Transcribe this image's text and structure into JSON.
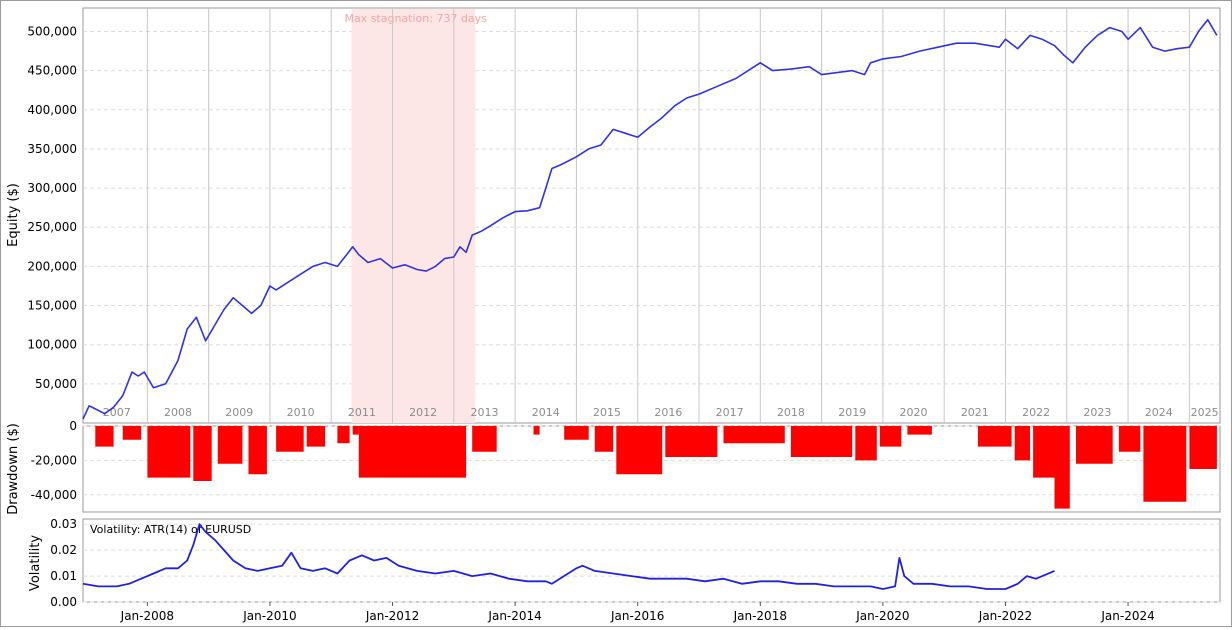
{
  "colors": {
    "equity_line": "#3333dd",
    "drawdown_fill": "#ff0000",
    "volatility_line": "#2222dd",
    "stagnation_band": "#fde6e6",
    "stagnation_text": "#f3a5a5",
    "grid": "#dddddd",
    "year_line": "#c8c8c8",
    "year_label": "#8c8c8c",
    "frame": "#9a9a9a"
  },
  "chart_data": [
    {
      "type": "line",
      "panel": "equity",
      "ylabel": "Equity ($)",
      "ylim": [
        0,
        530000
      ],
      "yticks": [
        "50,000",
        "100,000",
        "150,000",
        "200,000",
        "250,000",
        "300,000",
        "350,000",
        "400,000",
        "450,000",
        "500,000"
      ],
      "ytick_values": [
        50000,
        100000,
        150000,
        200000,
        250000,
        300000,
        350000,
        400000,
        450000,
        500000
      ],
      "grid": true,
      "year_labels": [
        "2007",
        "2008",
        "2009",
        "2010",
        "2011",
        "2012",
        "2013",
        "2014",
        "2015",
        "2016",
        "2017",
        "2018",
        "2019",
        "2020",
        "2021",
        "2022",
        "2023",
        "2024",
        "2025"
      ],
      "annotation": {
        "text": "Max stagnation: 737 days",
        "start": 2011.33,
        "end": 2013.35
      },
      "series": [
        {
          "x": [
            2006.95,
            2007.05,
            2007.15,
            2007.3,
            2007.45,
            2007.6,
            2007.75,
            2007.85,
            2007.95,
            2008.1,
            2008.3,
            2008.5,
            2008.65,
            2008.8,
            2008.95,
            2009.1,
            2009.25,
            2009.4,
            2009.55,
            2009.7,
            2009.85,
            2010.0,
            2010.1,
            2010.3,
            2010.5,
            2010.7,
            2010.9,
            2011.1,
            2011.25,
            2011.35,
            2011.45,
            2011.6,
            2011.8,
            2012.0,
            2012.2,
            2012.4,
            2012.55,
            2012.7,
            2012.85,
            2013.0,
            2013.1,
            2013.2,
            2013.3,
            2013.45,
            2013.6,
            2013.8,
            2014.0,
            2014.2,
            2014.4,
            2014.5,
            2014.6,
            2014.75,
            2015.0,
            2015.2,
            2015.4,
            2015.6,
            2015.8,
            2016.0,
            2016.2,
            2016.4,
            2016.6,
            2016.8,
            2017.0,
            2017.3,
            2017.6,
            2017.9,
            2018.0,
            2018.2,
            2018.5,
            2018.8,
            2019.0,
            2019.3,
            2019.5,
            2019.7,
            2019.8,
            2020.0,
            2020.3,
            2020.6,
            2020.9,
            2021.2,
            2021.5,
            2021.9,
            2022.0,
            2022.2,
            2022.4,
            2022.6,
            2022.8,
            2022.95,
            2023.1,
            2023.3,
            2023.5,
            2023.7,
            2023.9,
            2024.0,
            2024.2,
            2024.4,
            2024.6,
            2024.8,
            2025.0,
            2025.15,
            2025.3,
            2025.45
          ],
          "values": [
            5000,
            22000,
            18000,
            12000,
            20000,
            35000,
            65000,
            60000,
            65000,
            45000,
            50000,
            80000,
            120000,
            135000,
            105000,
            125000,
            145000,
            160000,
            150000,
            140000,
            150000,
            175000,
            170000,
            180000,
            190000,
            200000,
            205000,
            200000,
            215000,
            225000,
            215000,
            205000,
            210000,
            198000,
            202000,
            196000,
            194000,
            200000,
            210000,
            212000,
            225000,
            218000,
            240000,
            245000,
            252000,
            262000,
            270000,
            271000,
            275000,
            300000,
            325000,
            330000,
            340000,
            350000,
            355000,
            375000,
            370000,
            365000,
            378000,
            390000,
            405000,
            415000,
            420000,
            430000,
            440000,
            455000,
            460000,
            450000,
            452000,
            455000,
            445000,
            448000,
            450000,
            445000,
            460000,
            465000,
            468000,
            475000,
            480000,
            485000,
            485000,
            480000,
            490000,
            478000,
            495000,
            490000,
            482000,
            470000,
            460000,
            480000,
            495000,
            505000,
            500000,
            490000,
            505000,
            480000,
            475000,
            478000,
            480000,
            500000,
            515000,
            495000
          ]
        }
      ]
    },
    {
      "type": "bar",
      "panel": "drawdown",
      "ylabel": "Drawdown ($)",
      "ylim": [
        -50000,
        0
      ],
      "yticks": [
        "0",
        "-20,000",
        "-40,000"
      ],
      "ytick_values": [
        0,
        -20000,
        -40000
      ],
      "grid": true,
      "segments": [
        {
          "start": 2007.15,
          "end": 2007.45,
          "depth": -12000
        },
        {
          "start": 2007.6,
          "end": 2007.9,
          "depth": -8000
        },
        {
          "start": 2008.0,
          "end": 2008.7,
          "depth": -30000
        },
        {
          "start": 2008.75,
          "end": 2009.05,
          "depth": -32000
        },
        {
          "start": 2009.15,
          "end": 2009.55,
          "depth": -22000
        },
        {
          "start": 2009.65,
          "end": 2009.95,
          "depth": -28000
        },
        {
          "start": 2010.1,
          "end": 2010.55,
          "depth": -15000
        },
        {
          "start": 2010.6,
          "end": 2010.9,
          "depth": -12000
        },
        {
          "start": 2011.1,
          "end": 2011.3,
          "depth": -10000
        },
        {
          "start": 2011.35,
          "end": 2011.45,
          "depth": -5000
        },
        {
          "start": 2011.45,
          "end": 2013.2,
          "depth": -30000
        },
        {
          "start": 2013.3,
          "end": 2013.7,
          "depth": -15000
        },
        {
          "start": 2014.3,
          "end": 2014.4,
          "depth": -5000
        },
        {
          "start": 2014.8,
          "end": 2015.2,
          "depth": -8000
        },
        {
          "start": 2015.3,
          "end": 2015.6,
          "depth": -15000
        },
        {
          "start": 2015.65,
          "end": 2016.4,
          "depth": -28000
        },
        {
          "start": 2016.45,
          "end": 2017.3,
          "depth": -18000
        },
        {
          "start": 2017.4,
          "end": 2018.4,
          "depth": -10000
        },
        {
          "start": 2018.5,
          "end": 2019.5,
          "depth": -18000
        },
        {
          "start": 2019.55,
          "end": 2019.9,
          "depth": -20000
        },
        {
          "start": 2019.95,
          "end": 2020.3,
          "depth": -12000
        },
        {
          "start": 2020.4,
          "end": 2020.8,
          "depth": -5000
        },
        {
          "start": 2021.55,
          "end": 2022.1,
          "depth": -12000
        },
        {
          "start": 2022.15,
          "end": 2022.4,
          "depth": -20000
        },
        {
          "start": 2022.45,
          "end": 2022.8,
          "depth": -30000
        },
        {
          "start": 2022.8,
          "end": 2023.05,
          "depth": -48000
        },
        {
          "start": 2023.15,
          "end": 2023.75,
          "depth": -22000
        },
        {
          "start": 2023.85,
          "end": 2024.2,
          "depth": -15000
        },
        {
          "start": 2024.25,
          "end": 2024.95,
          "depth": -44000
        },
        {
          "start": 2025.0,
          "end": 2025.45,
          "depth": -25000
        }
      ]
    },
    {
      "type": "line",
      "panel": "volatility",
      "ylabel": "Volatility",
      "ylim": [
        0,
        0.032
      ],
      "yticks": [
        "0.00",
        "0.01",
        "0.02",
        "0.03"
      ],
      "ytick_values": [
        0,
        0.01,
        0.02,
        0.03
      ],
      "grid": true,
      "xticks": [
        "Jan-2008",
        "Jan-2010",
        "Jan-2012",
        "Jan-2014",
        "Jan-2016",
        "Jan-2018",
        "Jan-2020",
        "Jan-2022",
        "Jan-2024"
      ],
      "xtick_values": [
        2008.0,
        2010.0,
        2012.0,
        2014.0,
        2016.0,
        2018.0,
        2020.0,
        2022.0,
        2024.0
      ],
      "legend": "Volatility: ATR(14) of EURUSD",
      "series": [
        {
          "x": [
            2006.95,
            2007.2,
            2007.5,
            2007.7,
            2007.9,
            2008.1,
            2008.3,
            2008.5,
            2008.65,
            2008.75,
            2008.85,
            2008.95,
            2009.1,
            2009.25,
            2009.4,
            2009.6,
            2009.8,
            2010.0,
            2010.2,
            2010.35,
            2010.5,
            2010.7,
            2010.9,
            2011.1,
            2011.3,
            2011.5,
            2011.7,
            2011.9,
            2012.1,
            2012.4,
            2012.7,
            2013.0,
            2013.3,
            2013.6,
            2013.9,
            2014.2,
            2014.5,
            2014.6,
            2015.0,
            2015.1,
            2015.3,
            2015.6,
            2015.9,
            2016.2,
            2016.5,
            2016.8,
            2017.1,
            2017.4,
            2017.7,
            2018.0,
            2018.3,
            2018.6,
            2018.9,
            2019.2,
            2019.5,
            2019.8,
            2020.0,
            2020.2,
            2020.27,
            2020.35,
            2020.5,
            2020.8,
            2021.1,
            2021.4,
            2021.7,
            2022.0,
            2022.2,
            2022.35,
            2022.5,
            2022.8
          ],
          "values": [
            0.007,
            0.006,
            0.006,
            0.007,
            0.009,
            0.011,
            0.013,
            0.013,
            0.016,
            0.022,
            0.03,
            0.027,
            0.024,
            0.02,
            0.016,
            0.013,
            0.012,
            0.013,
            0.014,
            0.019,
            0.013,
            0.012,
            0.013,
            0.011,
            0.016,
            0.018,
            0.016,
            0.017,
            0.014,
            0.012,
            0.011,
            0.012,
            0.01,
            0.011,
            0.009,
            0.008,
            0.008,
            0.007,
            0.013,
            0.014,
            0.012,
            0.011,
            0.01,
            0.009,
            0.009,
            0.009,
            0.008,
            0.009,
            0.007,
            0.008,
            0.008,
            0.007,
            0.007,
            0.006,
            0.006,
            0.006,
            0.005,
            0.006,
            0.017,
            0.01,
            0.007,
            0.007,
            0.006,
            0.006,
            0.005,
            0.005,
            0.007,
            0.01,
            0.009,
            0.012
          ]
        }
      ]
    }
  ]
}
